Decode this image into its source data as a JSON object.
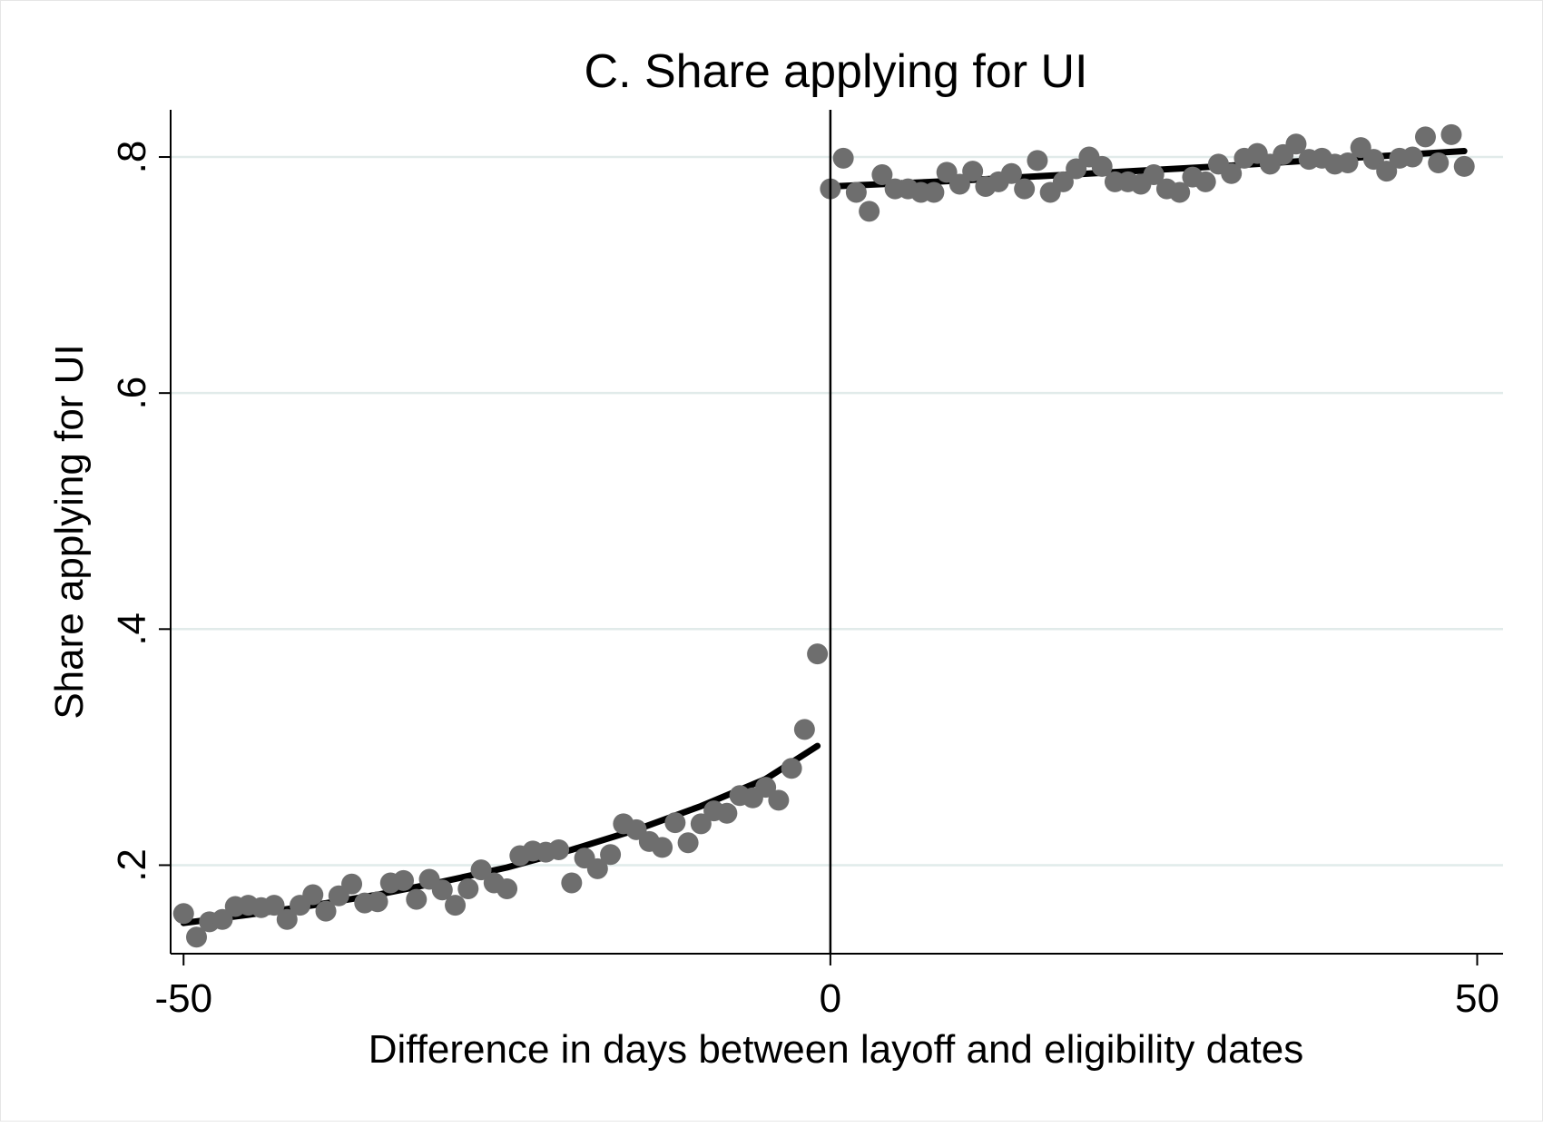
{
  "chart_data": {
    "type": "scatter",
    "title": "C. Share applying for UI",
    "xlabel": "Difference in days between layoff and eligibility dates",
    "ylabel": "Share applying for UI",
    "xlim": [
      -51,
      52
    ],
    "ylim": [
      0.125,
      0.84
    ],
    "x_ticks": [
      -50,
      0,
      50
    ],
    "x_tick_labels": [
      "-50",
      "0",
      "50"
    ],
    "y_ticks": [
      0.2,
      0.4,
      0.6,
      0.8
    ],
    "y_tick_labels": [
      ".2",
      ".4",
      ".6",
      ".8"
    ],
    "grid": true,
    "threshold_line_x": 0,
    "colors": {
      "points": "#6e6e6e",
      "fit": "#000000",
      "grid": "#e1ebea",
      "axis": "#000000"
    },
    "series": [
      {
        "kind": "points",
        "points": [
          [
            -50,
            0.159
          ],
          [
            -49,
            0.139
          ],
          [
            -48,
            0.152
          ],
          [
            -47,
            0.154
          ],
          [
            -46,
            0.165
          ],
          [
            -45,
            0.166
          ],
          [
            -44,
            0.164
          ],
          [
            -43,
            0.166
          ],
          [
            -42,
            0.154
          ],
          [
            -41,
            0.166
          ],
          [
            -40,
            0.175
          ],
          [
            -39,
            0.161
          ],
          [
            -38,
            0.174
          ],
          [
            -37,
            0.184
          ],
          [
            -36,
            0.168
          ],
          [
            -35,
            0.169
          ],
          [
            -34,
            0.185
          ],
          [
            -33,
            0.187
          ],
          [
            -32,
            0.171
          ],
          [
            -31,
            0.188
          ],
          [
            -30,
            0.179
          ],
          [
            -29,
            0.166
          ],
          [
            -28,
            0.18
          ],
          [
            -27,
            0.196
          ],
          [
            -26,
            0.185
          ],
          [
            -25,
            0.18
          ],
          [
            -24,
            0.208
          ],
          [
            -23,
            0.212
          ],
          [
            -22,
            0.211
          ],
          [
            -21,
            0.213
          ],
          [
            -20,
            0.185
          ],
          [
            -19,
            0.206
          ],
          [
            -18,
            0.197
          ],
          [
            -17,
            0.209
          ],
          [
            -16,
            0.235
          ],
          [
            -15,
            0.23
          ],
          [
            -14,
            0.22
          ],
          [
            -13,
            0.215
          ],
          [
            -12,
            0.236
          ],
          [
            -11,
            0.219
          ],
          [
            -10,
            0.235
          ],
          [
            -9,
            0.246
          ],
          [
            -8,
            0.244
          ],
          [
            -7,
            0.259
          ],
          [
            -6,
            0.257
          ],
          [
            -5,
            0.266
          ],
          [
            -4,
            0.255
          ],
          [
            -3,
            0.282
          ],
          [
            -2,
            0.315
          ],
          [
            -1,
            0.379
          ],
          [
            0,
            0.773
          ],
          [
            1,
            0.799
          ],
          [
            2,
            0.77
          ],
          [
            3,
            0.754
          ],
          [
            4,
            0.785
          ],
          [
            5,
            0.773
          ],
          [
            6,
            0.773
          ],
          [
            7,
            0.77
          ],
          [
            8,
            0.77
          ],
          [
            9,
            0.787
          ],
          [
            10,
            0.777
          ],
          [
            11,
            0.788
          ],
          [
            12,
            0.775
          ],
          [
            13,
            0.779
          ],
          [
            14,
            0.786
          ],
          [
            15,
            0.773
          ],
          [
            16,
            0.797
          ],
          [
            17,
            0.77
          ],
          [
            18,
            0.779
          ],
          [
            19,
            0.79
          ],
          [
            20,
            0.8
          ],
          [
            21,
            0.792
          ],
          [
            22,
            0.779
          ],
          [
            23,
            0.779
          ],
          [
            24,
            0.777
          ],
          [
            25,
            0.785
          ],
          [
            26,
            0.773
          ],
          [
            27,
            0.77
          ],
          [
            28,
            0.783
          ],
          [
            29,
            0.779
          ],
          [
            30,
            0.794
          ],
          [
            31,
            0.786
          ],
          [
            32,
            0.799
          ],
          [
            33,
            0.803
          ],
          [
            34,
            0.794
          ],
          [
            35,
            0.802
          ],
          [
            36,
            0.811
          ],
          [
            37,
            0.798
          ],
          [
            38,
            0.799
          ],
          [
            39,
            0.794
          ],
          [
            40,
            0.795
          ],
          [
            41,
            0.808
          ],
          [
            42,
            0.798
          ],
          [
            43,
            0.788
          ],
          [
            44,
            0.799
          ],
          [
            45,
            0.8
          ],
          [
            46,
            0.817
          ],
          [
            47,
            0.795
          ],
          [
            48,
            0.819
          ],
          [
            49,
            0.792
          ]
        ]
      },
      {
        "kind": "fit",
        "points": [
          [
            -50,
            0.151
          ],
          [
            -45,
            0.158
          ],
          [
            -40,
            0.166
          ],
          [
            -35,
            0.175
          ],
          [
            -30,
            0.186
          ],
          [
            -25,
            0.198
          ],
          [
            -20,
            0.213
          ],
          [
            -15,
            0.23
          ],
          [
            -10,
            0.25
          ],
          [
            -5,
            0.273
          ],
          [
            -1,
            0.301
          ]
        ]
      },
      {
        "kind": "fit",
        "points": [
          [
            0,
            0.775
          ],
          [
            10,
            0.78
          ],
          [
            20,
            0.786
          ],
          [
            30,
            0.792
          ],
          [
            40,
            0.799
          ],
          [
            49,
            0.805
          ]
        ]
      }
    ]
  }
}
